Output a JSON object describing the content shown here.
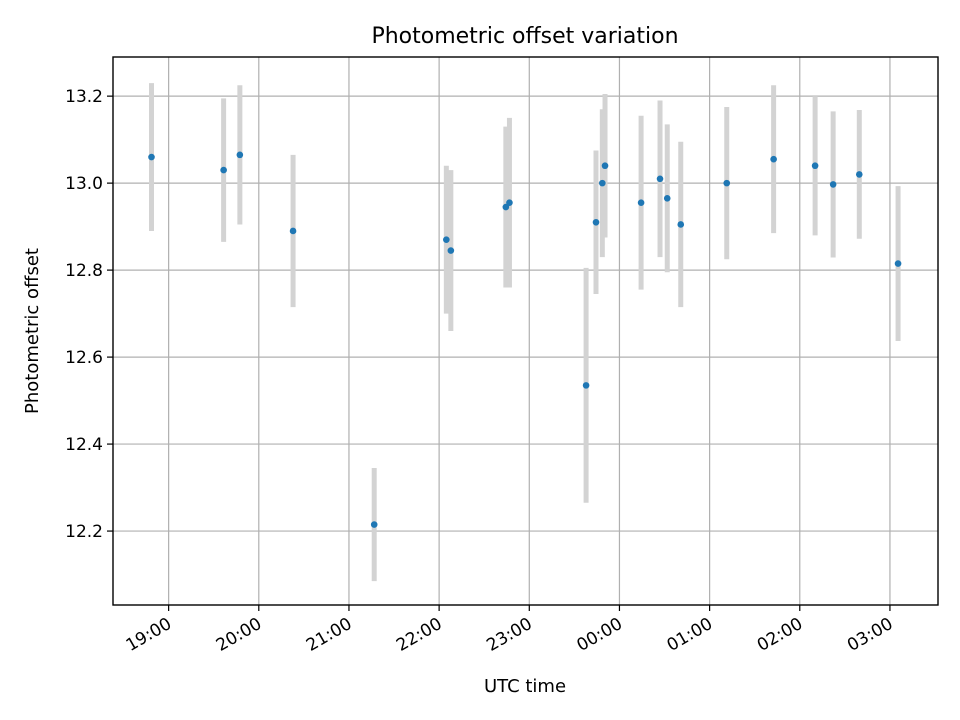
{
  "chart_data": {
    "type": "scatter",
    "title": "Photometric offset variation",
    "xlabel": "UTC time",
    "ylabel": "Photometric offset",
    "x_ticks": [
      "19:00",
      "20:00",
      "21:00",
      "22:00",
      "23:00",
      "00:00",
      "01:00",
      "02:00",
      "03:00"
    ],
    "x_tick_hours": [
      19,
      20,
      21,
      22,
      23,
      24,
      25,
      26,
      27
    ],
    "xlim": [
      18.383,
      27.533
    ],
    "y_ticks": [
      "12.2",
      "12.4",
      "12.6",
      "12.8",
      "13.0",
      "13.2"
    ],
    "y_tick_values": [
      12.2,
      12.4,
      12.6,
      12.8,
      13.0,
      13.2
    ],
    "ylim": [
      12.03,
      13.29
    ],
    "grid": true,
    "marker_color": "#1f77b4",
    "errorbar_color": "#d3d3d3",
    "series": [
      {
        "points": [
          {
            "x": 18.81,
            "y": 13.06,
            "err": 0.17
          },
          {
            "x": 19.61,
            "y": 13.03,
            "err": 0.165
          },
          {
            "x": 19.79,
            "y": 13.065,
            "err": 0.16
          },
          {
            "x": 20.38,
            "y": 12.89,
            "err": 0.175
          },
          {
            "x": 21.28,
            "y": 12.215,
            "err": 0.13
          },
          {
            "x": 22.08,
            "y": 12.87,
            "err": 0.17
          },
          {
            "x": 22.13,
            "y": 12.845,
            "err": 0.185
          },
          {
            "x": 22.74,
            "y": 12.945,
            "err": 0.185
          },
          {
            "x": 22.78,
            "y": 12.955,
            "err": 0.195
          },
          {
            "x": 23.63,
            "y": 12.535,
            "err": 0.27
          },
          {
            "x": 23.74,
            "y": 12.91,
            "err": 0.165
          },
          {
            "x": 23.81,
            "y": 13.0,
            "err": 0.17
          },
          {
            "x": 23.84,
            "y": 13.04,
            "err": 0.165
          },
          {
            "x": 24.24,
            "y": 12.955,
            "err": 0.2
          },
          {
            "x": 24.45,
            "y": 13.01,
            "err": 0.18
          },
          {
            "x": 24.53,
            "y": 12.965,
            "err": 0.17
          },
          {
            "x": 24.68,
            "y": 12.905,
            "err": 0.19
          },
          {
            "x": 25.19,
            "y": 13.0,
            "err": 0.175
          },
          {
            "x": 25.71,
            "y": 13.055,
            "err": 0.17
          },
          {
            "x": 26.17,
            "y": 13.04,
            "err": 0.16
          },
          {
            "x": 26.37,
            "y": 12.997,
            "err": 0.168
          },
          {
            "x": 26.66,
            "y": 13.02,
            "err": 0.148
          },
          {
            "x": 27.09,
            "y": 12.815,
            "err": 0.178
          }
        ]
      }
    ]
  }
}
